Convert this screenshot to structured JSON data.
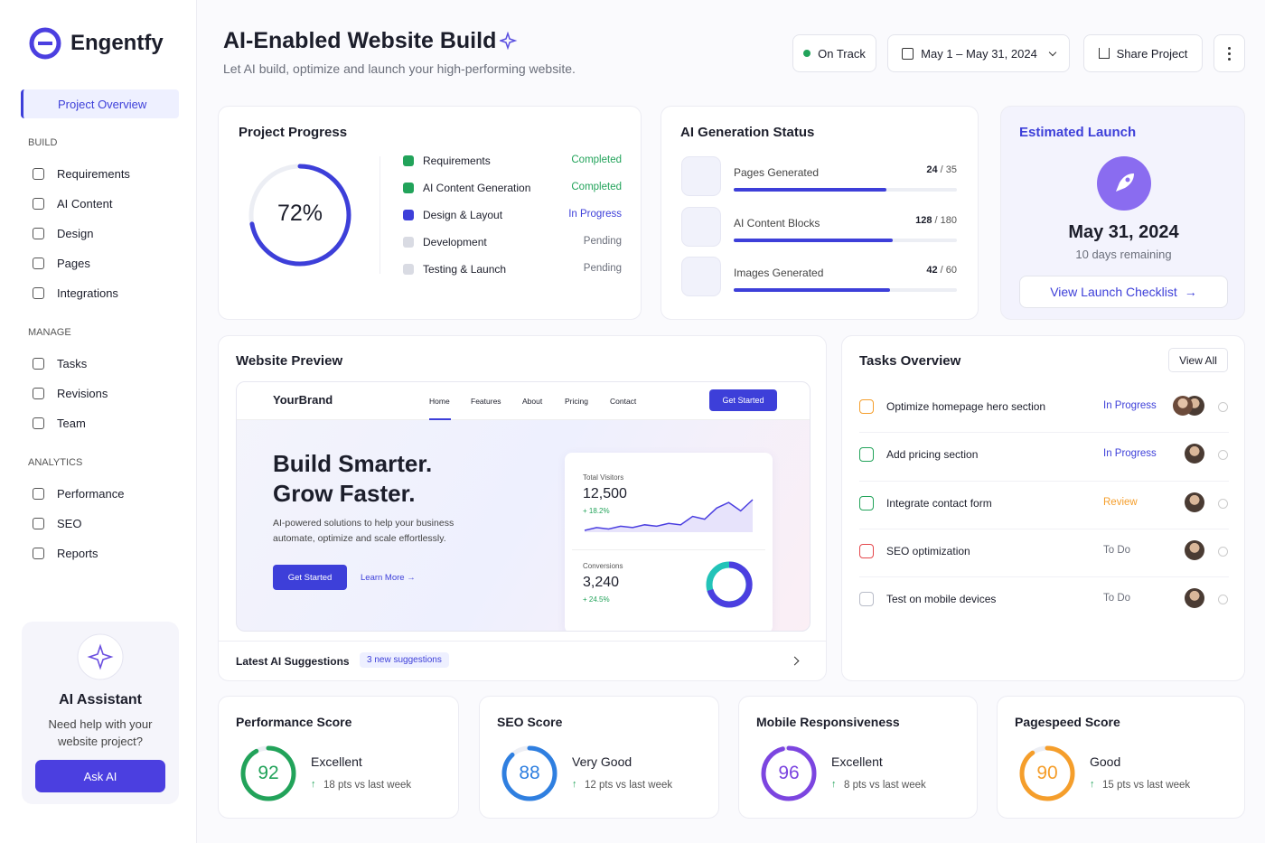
{
  "brand": "Engentfy",
  "nav": {
    "active": "Project Overview",
    "sections": [
      {
        "title": "BUILD",
        "items": [
          "Requirements",
          "AI Content",
          "Design",
          "Pages",
          "Integrations"
        ]
      },
      {
        "title": "MANAGE",
        "items": [
          "Tasks",
          "Revisions",
          "Team"
        ]
      },
      {
        "title": "ANALYTICS",
        "items": [
          "Performance",
          "SEO",
          "Reports"
        ]
      }
    ]
  },
  "assistant": {
    "title": "AI Assistant",
    "text": "Need help with your website project?",
    "button": "Ask AI"
  },
  "header": {
    "title": "AI-Enabled Website Build",
    "subtitle": "Let AI build, optimize and launch your high-performing website.",
    "status": "On Track",
    "date_range": "May 1 – May 31, 2024",
    "share": "Share Project"
  },
  "progress": {
    "title": "Project Progress",
    "percent": {
      "value": 72,
      "label": "72%"
    },
    "steps": [
      {
        "name": "Requirements",
        "status": "Completed",
        "color": "#22a35a",
        "status_color": "#22a35a"
      },
      {
        "name": "AI Content Generation",
        "status": "Completed",
        "color": "#22a35a",
        "status_color": "#22a35a"
      },
      {
        "name": "Design & Layout",
        "status": "In Progress",
        "color": "#3d3fd9",
        "status_color": "#3d3fd9"
      },
      {
        "name": "Development",
        "status": "Pending",
        "color": "#d9dbe3",
        "status_color": "#6b6f7b"
      },
      {
        "name": "Testing & Launch",
        "status": "Pending",
        "color": "#d9dbe3",
        "status_color": "#6b6f7b"
      }
    ]
  },
  "ai_status": {
    "title": "AI Generation Status",
    "items": [
      {
        "label": "Pages Generated",
        "done": 24,
        "total": {
          "value": 35,
          "label": "/ 35"
        }
      },
      {
        "label": "AI Content Blocks",
        "done": 128,
        "total": {
          "value": 180,
          "label": "/ 180"
        }
      },
      {
        "label": "Images Generated",
        "done": 42,
        "total": {
          "value": 60,
          "label": "/ 60"
        }
      }
    ]
  },
  "launch": {
    "title": "Estimated Launch",
    "date": "May 31, 2024",
    "remaining": "10 days remaining",
    "button": "View Launch Checklist"
  },
  "preview": {
    "title": "Website Preview",
    "brand": "YourBrand",
    "menu": [
      "Home",
      "Features",
      "About",
      "Pricing",
      "Contact"
    ],
    "cta": "Get Started",
    "headline": [
      "Build Smarter.",
      "Grow Faster."
    ],
    "text": [
      "AI-powered solutions to help your business",
      "automate, optimize and scale effortlessly."
    ],
    "primary": "Get Started",
    "secondary": "Learn More",
    "visitors": {
      "label": "Total Visitors",
      "value": "12,500",
      "change": "+ 18.2%",
      "trend": [
        8,
        10,
        9,
        11,
        10,
        12,
        11,
        13,
        12,
        18,
        16,
        24,
        28,
        22,
        30
      ]
    },
    "conversions": {
      "label": "Conversions",
      "value": "3,240",
      "change": "+ 24.5%"
    },
    "suggestions": "Latest AI Suggestions",
    "suggestions_badge": "3 new suggestions"
  },
  "tasks": {
    "title": "Tasks Overview",
    "view_all": "View All",
    "items": [
      {
        "name": "Optimize homepage hero section",
        "status": "In Progress",
        "color": "#f59e2b",
        "status_color": "#3d3fd9"
      },
      {
        "name": "Add pricing section",
        "status": "In Progress",
        "color": "#22a35a",
        "status_color": "#3d3fd9"
      },
      {
        "name": "Integrate contact form",
        "status": "Review",
        "color": "#22a35a",
        "status_color": "#f59e2b"
      },
      {
        "name": "SEO optimization",
        "status": "To Do",
        "color": "#e5484d",
        "status_color": "#6b6f7b"
      },
      {
        "name": "Test on mobile devices",
        "status": "To Do",
        "color": "#b8bcc8",
        "status_color": "#6b6f7b"
      }
    ]
  },
  "scores": [
    {
      "title": "Performance Score",
      "score": 92,
      "rating": "Excellent",
      "change": "18 pts vs last week",
      "color": "#22a35a"
    },
    {
      "title": "SEO Score",
      "score": 88,
      "rating": "Very Good",
      "change": "12 pts vs last week",
      "color": "#2f7fe0"
    },
    {
      "title": "Mobile Responsiveness",
      "score": 96,
      "rating": "Excellent",
      "change": "8 pts vs last week",
      "color": "#7c45e0"
    },
    {
      "title": "Pagespeed Score",
      "score": 90,
      "rating": "Good",
      "change": "15 pts vs last week",
      "color": "#f59e2b"
    }
  ]
}
